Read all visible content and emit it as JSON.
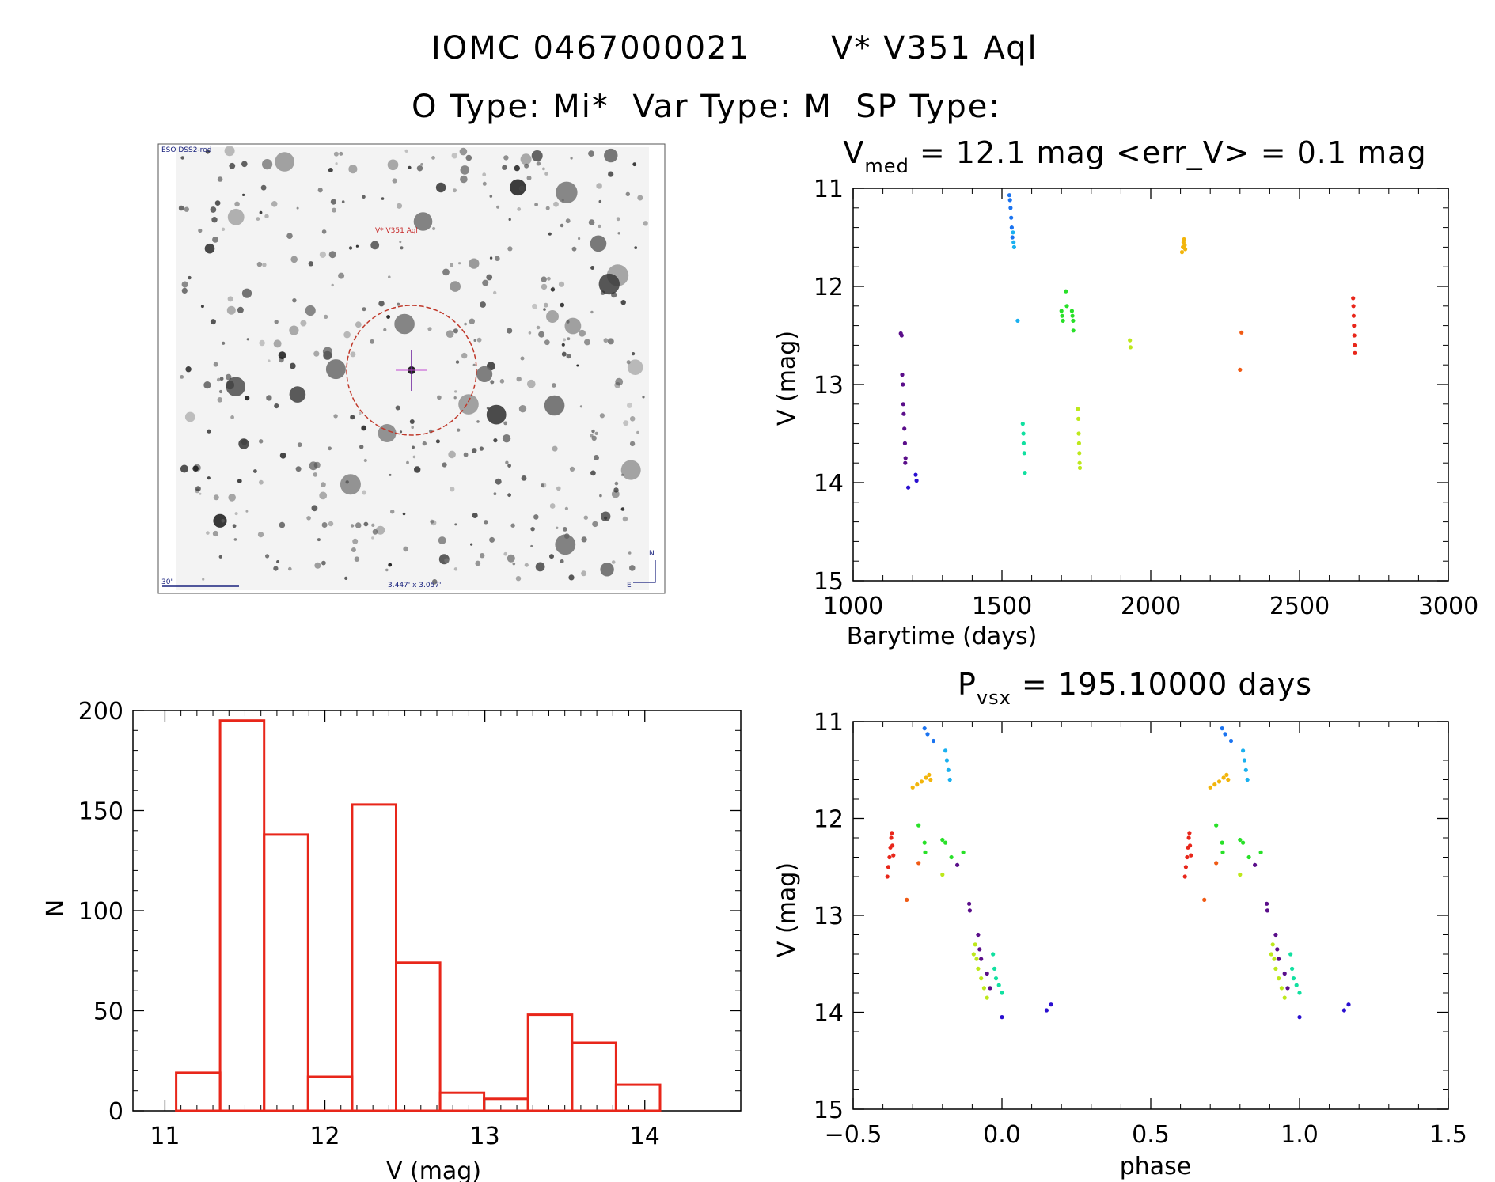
{
  "header": {
    "line1_id": "IOMC 0467000021",
    "line1_name": "V* V351 Aql",
    "line2": "O Type: Mi*  Var Type: M  SP Type:"
  },
  "image_panel": {
    "survey_label": "ESO DSS2-red",
    "target_label": "V* V351 Aql",
    "scale_label": "30\"",
    "fov_label": "3.447' x 3.057'",
    "north_label": "N",
    "east_label": "E"
  },
  "chart_data": [
    {
      "id": "lightcurve",
      "type": "scatter",
      "title_parts": {
        "main": "V",
        "sub": "med",
        "rest": " = 12.1 mag <err_V> = 0.1 mag"
      },
      "xlabel": "Barytime (days)",
      "ylabel": "V (mag)",
      "xlim": [
        1000,
        3000
      ],
      "ylim": [
        15,
        11
      ],
      "y_inverted": true,
      "xticks": [
        1000,
        1500,
        2000,
        2500,
        3000
      ],
      "yticks": [
        11,
        12,
        13,
        14,
        15
      ],
      "series": [
        {
          "color": "#5a0e8a",
          "points": [
            [
              1160,
              12.48
            ],
            [
              1163,
              12.5
            ],
            [
              1165,
              12.9
            ],
            [
              1167,
              13.0
            ],
            [
              1168,
              13.2
            ],
            [
              1170,
              13.3
            ],
            [
              1172,
              13.45
            ],
            [
              1174,
              13.6
            ],
            [
              1175,
              13.8
            ],
            [
              1176,
              13.75
            ]
          ]
        },
        {
          "color": "#2a0fd0",
          "points": [
            [
              1185,
              14.05
            ],
            [
              1210,
              13.92
            ],
            [
              1213,
              13.98
            ]
          ]
        },
        {
          "color": "#1a73f0",
          "points": [
            [
              1525,
              11.07
            ],
            [
              1527,
              11.12
            ],
            [
              1529,
              11.2
            ],
            [
              1531,
              11.3
            ],
            [
              1533,
              11.4
            ],
            [
              1535,
              11.5
            ]
          ]
        },
        {
          "color": "#1ab0f0",
          "points": [
            [
              1537,
              11.45
            ],
            [
              1539,
              11.55
            ],
            [
              1541,
              11.6
            ],
            [
              1553,
              12.35
            ]
          ]
        },
        {
          "color": "#11e0a0",
          "points": [
            [
              1570,
              13.4
            ],
            [
              1572,
              13.5
            ],
            [
              1573,
              13.6
            ],
            [
              1575,
              13.7
            ],
            [
              1577,
              13.9
            ]
          ]
        },
        {
          "color": "#28e028",
          "points": [
            [
              1715,
              12.05
            ],
            [
              1718,
              12.2
            ],
            [
              1700,
              12.25
            ],
            [
              1702,
              12.3
            ],
            [
              1705,
              12.35
            ],
            [
              1735,
              12.25
            ],
            [
              1737,
              12.3
            ],
            [
              1739,
              12.35
            ],
            [
              1740,
              12.45
            ]
          ]
        },
        {
          "color": "#bde81b",
          "points": [
            [
              1755,
              13.25
            ],
            [
              1757,
              13.35
            ],
            [
              1758,
              13.5
            ],
            [
              1759,
              13.6
            ],
            [
              1760,
              13.7
            ],
            [
              1761,
              13.8
            ],
            [
              1762,
              13.85
            ],
            [
              1930,
              12.55
            ],
            [
              1932,
              12.62
            ]
          ]
        },
        {
          "color": "#f2b50c",
          "points": [
            [
              2105,
              11.65
            ],
            [
              2108,
              11.6
            ],
            [
              2110,
              11.55
            ],
            [
              2112,
              11.52
            ],
            [
              2114,
              11.58
            ],
            [
              2116,
              11.62
            ]
          ]
        },
        {
          "color": "#f05a14",
          "points": [
            [
              2305,
              12.47
            ],
            [
              2300,
              12.85
            ]
          ]
        },
        {
          "color": "#e8261a",
          "points": [
            [
              2680,
              12.12
            ],
            [
              2681,
              12.2
            ],
            [
              2682,
              12.3
            ],
            [
              2683,
              12.4
            ],
            [
              2684,
              12.5
            ],
            [
              2685,
              12.6
            ],
            [
              2686,
              12.68
            ]
          ]
        }
      ]
    },
    {
      "id": "histogram",
      "type": "bar",
      "xlabel": "V (mag)",
      "ylabel": "N",
      "xlim": [
        10.8,
        14.6
      ],
      "ylim": [
        0,
        200
      ],
      "xticks": [
        11,
        12,
        13,
        14
      ],
      "yticks": [
        0,
        50,
        100,
        150,
        200
      ],
      "bin_edges": [
        11.07,
        11.345,
        11.62,
        11.895,
        12.17,
        12.445,
        12.72,
        12.995,
        13.27,
        13.545,
        13.82,
        14.095
      ],
      "values": [
        19,
        195,
        138,
        17,
        153,
        74,
        9,
        6,
        48,
        34,
        13
      ],
      "color": "#e8261a"
    },
    {
      "id": "phased",
      "type": "scatter",
      "title_parts": {
        "main": "P",
        "sub": "vsx",
        "rest": " = 195.10000 days"
      },
      "xlabel": "phase",
      "ylabel": "V (mag)",
      "xlim": [
        -0.5,
        1.5
      ],
      "ylim": [
        15,
        11
      ],
      "y_inverted": true,
      "xticks": [
        "−0.5",
        "0.0",
        "0.5",
        "1.0",
        "1.5"
      ],
      "xtick_values": [
        -0.5,
        0.0,
        0.5,
        1.0,
        1.5
      ],
      "yticks": [
        11,
        12,
        13,
        14,
        15
      ],
      "series": [
        {
          "color": "#e8261a",
          "points": [
            [
              -0.385,
              12.6
            ],
            [
              -0.382,
              12.5
            ],
            [
              -0.378,
              12.4
            ],
            [
              -0.375,
              12.3
            ],
            [
              -0.372,
              12.2
            ],
            [
              -0.37,
              12.15
            ],
            [
              -0.368,
              12.28
            ],
            [
              -0.365,
              12.38
            ],
            [
              0.615,
              12.6
            ],
            [
              0.618,
              12.5
            ],
            [
              0.622,
              12.4
            ],
            [
              0.625,
              12.3
            ],
            [
              0.628,
              12.2
            ],
            [
              0.63,
              12.15
            ],
            [
              0.632,
              12.28
            ],
            [
              0.635,
              12.38
            ]
          ]
        },
        {
          "color": "#f05a14",
          "points": [
            [
              -0.28,
              12.46
            ],
            [
              -0.32,
              12.84
            ],
            [
              0.72,
              12.46
            ],
            [
              0.68,
              12.84
            ]
          ]
        },
        {
          "color": "#f2b50c",
          "points": [
            [
              -0.3,
              11.68
            ],
            [
              -0.285,
              11.65
            ],
            [
              -0.27,
              11.62
            ],
            [
              -0.255,
              11.58
            ],
            [
              -0.245,
              11.55
            ],
            [
              -0.24,
              11.6
            ],
            [
              0.7,
              11.68
            ],
            [
              0.715,
              11.65
            ],
            [
              0.73,
              11.62
            ],
            [
              0.745,
              11.58
            ],
            [
              0.755,
              11.55
            ],
            [
              0.76,
              11.6
            ]
          ]
        },
        {
          "color": "#1a73f0",
          "points": [
            [
              -0.26,
              11.07
            ],
            [
              -0.25,
              11.13
            ],
            [
              -0.23,
              11.2
            ],
            [
              0.74,
              11.07
            ],
            [
              0.75,
              11.13
            ],
            [
              0.77,
              11.2
            ]
          ]
        },
        {
          "color": "#1ab0f0",
          "points": [
            [
              -0.19,
              11.3
            ],
            [
              -0.185,
              11.4
            ],
            [
              -0.18,
              11.5
            ],
            [
              -0.175,
              11.6
            ],
            [
              0.81,
              11.3
            ],
            [
              0.815,
              11.4
            ],
            [
              0.82,
              11.5
            ],
            [
              0.825,
              11.6
            ]
          ]
        },
        {
          "color": "#28e028",
          "points": [
            [
              -0.28,
              12.07
            ],
            [
              -0.26,
              12.25
            ],
            [
              -0.258,
              12.35
            ],
            [
              -0.2,
              12.22
            ],
            [
              -0.19,
              12.25
            ],
            [
              -0.17,
              12.4
            ],
            [
              -0.13,
              12.35
            ],
            [
              0.72,
              12.07
            ],
            [
              0.74,
              12.25
            ],
            [
              0.742,
              12.35
            ],
            [
              0.8,
              12.22
            ],
            [
              0.81,
              12.25
            ],
            [
              0.83,
              12.4
            ],
            [
              0.87,
              12.35
            ]
          ]
        },
        {
          "color": "#bde81b",
          "points": [
            [
              -0.2,
              12.58
            ],
            [
              -0.09,
              13.3
            ],
            [
              -0.085,
              13.45
            ],
            [
              -0.08,
              13.55
            ],
            [
              -0.07,
              13.65
            ],
            [
              -0.06,
              13.75
            ],
            [
              -0.05,
              13.85
            ],
            [
              -0.095,
              13.4
            ],
            [
              0.8,
              12.58
            ],
            [
              0.91,
              13.3
            ],
            [
              0.915,
              13.45
            ],
            [
              0.92,
              13.55
            ],
            [
              0.93,
              13.65
            ],
            [
              0.94,
              13.75
            ],
            [
              0.95,
              13.85
            ],
            [
              0.905,
              13.4
            ]
          ]
        },
        {
          "color": "#5a0e8a",
          "points": [
            [
              -0.11,
              12.88
            ],
            [
              -0.108,
              12.95
            ],
            [
              -0.08,
              13.2
            ],
            [
              -0.075,
              13.35
            ],
            [
              -0.07,
              13.45
            ],
            [
              -0.05,
              13.6
            ],
            [
              -0.04,
              13.75
            ],
            [
              -0.15,
              12.48
            ],
            [
              0.89,
              12.88
            ],
            [
              0.892,
              12.95
            ],
            [
              0.92,
              13.2
            ],
            [
              0.925,
              13.35
            ],
            [
              0.93,
              13.45
            ],
            [
              0.95,
              13.6
            ],
            [
              0.96,
              13.75
            ],
            [
              0.85,
              12.48
            ]
          ]
        },
        {
          "color": "#11e0a0",
          "points": [
            [
              -0.03,
              13.4
            ],
            [
              -0.025,
              13.55
            ],
            [
              -0.02,
              13.65
            ],
            [
              -0.01,
              13.72
            ],
            [
              0.0,
              13.8
            ],
            [
              0.97,
              13.4
            ],
            [
              0.975,
              13.55
            ],
            [
              0.98,
              13.65
            ],
            [
              0.99,
              13.72
            ],
            [
              1.0,
              13.8
            ]
          ]
        },
        {
          "color": "#2a0fd0",
          "points": [
            [
              0.0,
              14.05
            ],
            [
              0.15,
              13.98
            ],
            [
              0.165,
              13.92
            ],
            [
              1.0,
              14.05
            ],
            [
              1.15,
              13.98
            ],
            [
              1.165,
              13.92
            ]
          ]
        }
      ]
    }
  ]
}
